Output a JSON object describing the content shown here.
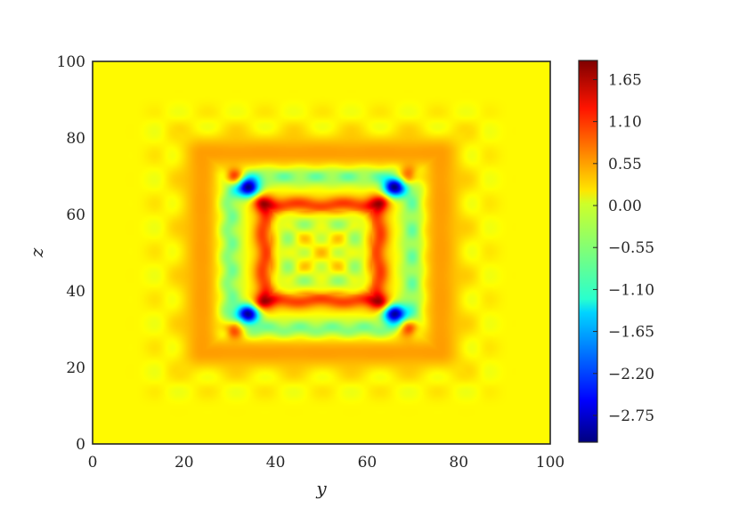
{
  "chart_data": {
    "type": "heatmap",
    "title": "",
    "xlabel": "y",
    "ylabel": "z",
    "xlim": [
      0,
      100
    ],
    "ylim": [
      0,
      100
    ],
    "x_ticks": [
      "0",
      "20",
      "40",
      "60",
      "80",
      "100"
    ],
    "y_ticks": [
      "0",
      "20",
      "40",
      "60",
      "80",
      "100"
    ],
    "colormap": "jet",
    "colorbar": {
      "min": -3.1,
      "max": 1.9,
      "ticks": [
        "1.65",
        "1.10",
        "0.55",
        "0.00",
        "−0.55",
        "−1.10",
        "−1.65",
        "−2.20",
        "−2.75"
      ],
      "tick_values": [
        1.65,
        1.1,
        0.55,
        0.0,
        -0.55,
        -1.1,
        -1.65,
        -2.2,
        -2.75
      ]
    },
    "background_value": 0.05,
    "features": {
      "outer_frame": {
        "value": 0.45,
        "lo": 24,
        "hi": 76
      },
      "cyan_ring": {
        "value": -0.9,
        "lo": 30,
        "hi": 70
      },
      "red_ring": {
        "value": 1.2,
        "lo": 37.5,
        "hi": 62.5
      },
      "inner_ring": {
        "value": -0.35,
        "lo": 42.5,
        "hi": 57.5
      },
      "red_corners": [
        {
          "x": 37.5,
          "y": 63,
          "value": 1.9
        },
        {
          "x": 62.5,
          "y": 63,
          "value": 1.9
        },
        {
          "x": 37.5,
          "y": 37,
          "value": 1.9
        },
        {
          "x": 62.5,
          "y": 37,
          "value": 1.9
        }
      ],
      "blue_blobs": [
        {
          "x": 34,
          "y": 67,
          "value": -3.0
        },
        {
          "x": 66,
          "y": 67,
          "value": -3.0
        },
        {
          "x": 34,
          "y": 34,
          "value": -3.0
        },
        {
          "x": 66,
          "y": 34,
          "value": -3.0
        }
      ],
      "diagonal_red_blobs": [
        {
          "x": 31,
          "y": 70,
          "value": 1.5
        },
        {
          "x": 69,
          "y": 70,
          "value": 1.5
        },
        {
          "x": 31,
          "y": 30,
          "value": 1.5
        },
        {
          "x": 69,
          "y": 30,
          "value": 1.5
        }
      ]
    }
  }
}
